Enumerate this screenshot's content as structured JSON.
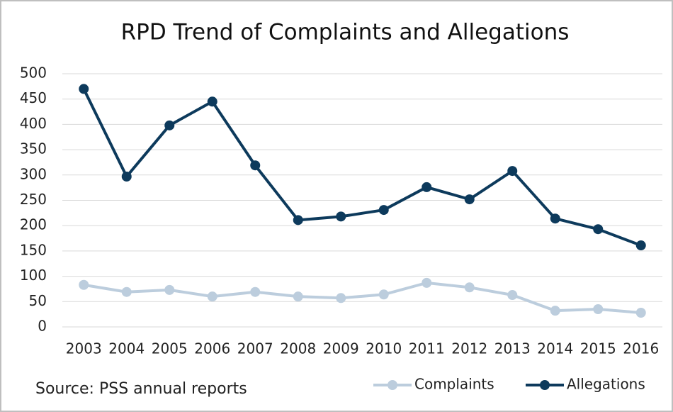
{
  "chart_data": {
    "type": "line",
    "title": "RPD Trend of Complaints and Allegations",
    "source": "Source: PSS annual reports",
    "categories": [
      "2003",
      "2004",
      "2005",
      "2006",
      "2007",
      "2008",
      "2009",
      "2010",
      "2011",
      "2012",
      "2013",
      "2014",
      "2015",
      "2016"
    ],
    "series": [
      {
        "name": "Complaints",
        "color": "#bccddd",
        "values": [
          83,
          69,
          73,
          60,
          69,
          60,
          57,
          64,
          87,
          78,
          63,
          32,
          35,
          28
        ]
      },
      {
        "name": "Allegations",
        "color": "#0d3a5c",
        "values": [
          470,
          297,
          398,
          445,
          319,
          211,
          218,
          231,
          276,
          252,
          308,
          214,
          193,
          161
        ]
      }
    ],
    "ylim": [
      0,
      500
    ],
    "yticks": [
      0,
      50,
      100,
      150,
      200,
      250,
      300,
      350,
      400,
      450,
      500
    ],
    "grid": true,
    "legend": "bottom-right"
  }
}
